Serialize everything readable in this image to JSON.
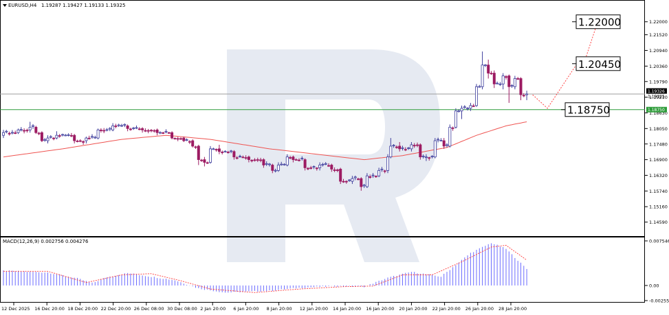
{
  "header": {
    "symbol_label": "EURUSD,H4",
    "ohlc_label": "1.19287 1.19427 1.19133 1.19325"
  },
  "macd_header": {
    "label": "MACD(12,26,9) 0.002756 0.004276"
  },
  "colors": {
    "bull_candle": "#3d3d9c",
    "bear_candle": "#9c1b62",
    "ma_line": "#ef5350",
    "macd_hist": "#6b6bff",
    "signal_line": "#ff3b3b",
    "support_line": "#2e9c3a",
    "price_line": "#9e9e9e",
    "forecast": "#ff4040",
    "watermark": "#e6eaf2"
  },
  "chart_data": [
    {
      "type": "candlestick",
      "symbol": "EURUSD",
      "timeframe": "H4",
      "x_ticks": [
        "12 Dec 2025",
        "16 Dec 20:00",
        "18 Dec 20:00",
        "22 Dec 20:00",
        "26 Dec 08:00",
        "30 Dec 08:00",
        "2 Jan 20:00",
        "6 Jan 20:00",
        "8 Jan 20:00",
        "12 Jan 20:00",
        "14 Jan 20:00",
        "16 Jan 20:00",
        "20 Jan 20:00",
        "22 Jan 20:00",
        "26 Jan 20:00",
        "28 Jan 20:00"
      ],
      "y_ticks": [
        "1.22000",
        "1.21520",
        "1.20940",
        "1.20360",
        "1.19790",
        "1.19210",
        "1.18630",
        "1.18050",
        "1.17480",
        "1.16900",
        "1.16320",
        "1.15740",
        "1.15160",
        "1.14590"
      ],
      "ylim": [
        1.1425,
        1.2245
      ],
      "price_label": "1.19325",
      "line_labels": [
        "1.19326",
        "1.18750"
      ],
      "levels": {
        "current": 1.19326,
        "support": 1.1875
      },
      "anchors": [
        {
          "x": 0,
          "open": 1.178,
          "close": 1.179,
          "high": 1.18,
          "low": 1.177
        },
        {
          "x": 5,
          "open": 1.179,
          "close": 1.18,
          "high": 1.1805,
          "low": 1.1785
        },
        {
          "x": 9,
          "open": 1.18,
          "close": 1.181,
          "high": 1.183,
          "low": 1.179
        },
        {
          "x": 11,
          "open": 1.181,
          "close": 1.179,
          "high": 1.1815,
          "low": 1.1785
        },
        {
          "x": 13,
          "open": 1.179,
          "close": 1.176,
          "high": 1.1795,
          "low": 1.1755
        },
        {
          "x": 15,
          "open": 1.176,
          "close": 1.177,
          "high": 1.178,
          "low": 1.175
        },
        {
          "x": 18,
          "open": 1.177,
          "close": 1.178,
          "high": 1.1795,
          "low": 1.1765
        },
        {
          "x": 24,
          "open": 1.178,
          "close": 1.176,
          "high": 1.1785,
          "low": 1.175
        },
        {
          "x": 28,
          "open": 1.176,
          "close": 1.177,
          "high": 1.1775,
          "low": 1.175
        },
        {
          "x": 32,
          "open": 1.177,
          "close": 1.18,
          "high": 1.1805,
          "low": 1.1765
        },
        {
          "x": 37,
          "open": 1.18,
          "close": 1.1815,
          "high": 1.1825,
          "low": 1.1795
        },
        {
          "x": 42,
          "open": 1.1815,
          "close": 1.1805,
          "high": 1.182,
          "low": 1.1795
        },
        {
          "x": 47,
          "open": 1.1805,
          "close": 1.18,
          "high": 1.181,
          "low": 1.179
        },
        {
          "x": 52,
          "open": 1.18,
          "close": 1.179,
          "high": 1.1805,
          "low": 1.178
        },
        {
          "x": 57,
          "open": 1.179,
          "close": 1.177,
          "high": 1.1795,
          "low": 1.1765
        },
        {
          "x": 61,
          "open": 1.177,
          "close": 1.176,
          "high": 1.1775,
          "low": 1.1755
        },
        {
          "x": 64,
          "open": 1.176,
          "close": 1.174,
          "high": 1.1765,
          "low": 1.1735
        },
        {
          "x": 66,
          "open": 1.174,
          "close": 1.169,
          "high": 1.1745,
          "low": 1.167
        },
        {
          "x": 68,
          "open": 1.169,
          "close": 1.168,
          "high": 1.17,
          "low": 1.1665
        },
        {
          "x": 70,
          "open": 1.168,
          "close": 1.173,
          "high": 1.174,
          "low": 1.1675
        },
        {
          "x": 73,
          "open": 1.173,
          "close": 1.172,
          "high": 1.1745,
          "low": 1.171
        },
        {
          "x": 78,
          "open": 1.172,
          "close": 1.17,
          "high": 1.1725,
          "low": 1.169
        },
        {
          "x": 83,
          "open": 1.17,
          "close": 1.169,
          "high": 1.1705,
          "low": 1.168
        },
        {
          "x": 88,
          "open": 1.169,
          "close": 1.167,
          "high": 1.1695,
          "low": 1.166
        },
        {
          "x": 91,
          "open": 1.167,
          "close": 1.165,
          "high": 1.1675,
          "low": 1.164
        },
        {
          "x": 93,
          "open": 1.165,
          "close": 1.167,
          "high": 1.168,
          "low": 1.1645
        },
        {
          "x": 96,
          "open": 1.167,
          "close": 1.17,
          "high": 1.171,
          "low": 1.1665
        },
        {
          "x": 98,
          "open": 1.17,
          "close": 1.169,
          "high": 1.1705,
          "low": 1.168
        },
        {
          "x": 102,
          "open": 1.169,
          "close": 1.166,
          "high": 1.1695,
          "low": 1.165
        },
        {
          "x": 107,
          "open": 1.166,
          "close": 1.167,
          "high": 1.168,
          "low": 1.165
        },
        {
          "x": 111,
          "open": 1.167,
          "close": 1.1655,
          "high": 1.1675,
          "low": 1.1645
        },
        {
          "x": 114,
          "open": 1.1655,
          "close": 1.161,
          "high": 1.166,
          "low": 1.16
        },
        {
          "x": 118,
          "open": 1.161,
          "close": 1.162,
          "high": 1.163,
          "low": 1.16
        },
        {
          "x": 121,
          "open": 1.162,
          "close": 1.159,
          "high": 1.1625,
          "low": 1.1575
        },
        {
          "x": 123,
          "open": 1.159,
          "close": 1.163,
          "high": 1.164,
          "low": 1.1585
        },
        {
          "x": 127,
          "open": 1.163,
          "close": 1.165,
          "high": 1.166,
          "low": 1.1625
        },
        {
          "x": 130,
          "open": 1.165,
          "close": 1.17,
          "high": 1.171,
          "low": 1.164
        },
        {
          "x": 131,
          "open": 1.17,
          "close": 1.174,
          "high": 1.177,
          "low": 1.1695
        },
        {
          "x": 134,
          "open": 1.174,
          "close": 1.173,
          "high": 1.1755,
          "low": 1.172
        },
        {
          "x": 138,
          "open": 1.173,
          "close": 1.1745,
          "high": 1.1755,
          "low": 1.172
        },
        {
          "x": 141,
          "open": 1.1745,
          "close": 1.17,
          "high": 1.175,
          "low": 1.169
        },
        {
          "x": 143,
          "open": 1.17,
          "close": 1.17,
          "high": 1.171,
          "low": 1.1685
        },
        {
          "x": 146,
          "open": 1.17,
          "close": 1.176,
          "high": 1.177,
          "low": 1.1695
        },
        {
          "x": 149,
          "open": 1.176,
          "close": 1.174,
          "high": 1.177,
          "low": 1.173
        },
        {
          "x": 151,
          "open": 1.174,
          "close": 1.181,
          "high": 1.182,
          "low": 1.1735
        },
        {
          "x": 153,
          "open": 1.181,
          "close": 1.187,
          "high": 1.188,
          "low": 1.1805
        },
        {
          "x": 155,
          "open": 1.187,
          "close": 1.188,
          "high": 1.189,
          "low": 1.184
        },
        {
          "x": 158,
          "open": 1.188,
          "close": 1.189,
          "high": 1.19,
          "low": 1.187
        },
        {
          "x": 160,
          "open": 1.189,
          "close": 1.196,
          "high": 1.197,
          "low": 1.1885
        },
        {
          "x": 162,
          "open": 1.196,
          "close": 1.204,
          "high": 1.209,
          "low": 1.195
        },
        {
          "x": 164,
          "open": 1.204,
          "close": 1.201,
          "high": 1.206,
          "low": 1.199
        },
        {
          "x": 166,
          "open": 1.201,
          "close": 1.197,
          "high": 1.202,
          "low": 1.1955
        },
        {
          "x": 169,
          "open": 1.197,
          "close": 1.2,
          "high": 1.201,
          "low": 1.195
        },
        {
          "x": 171,
          "open": 1.2,
          "close": 1.196,
          "high": 1.2005,
          "low": 1.19
        },
        {
          "x": 173,
          "open": 1.196,
          "close": 1.199,
          "high": 1.2,
          "low": 1.195
        },
        {
          "x": 175,
          "open": 1.199,
          "close": 1.193,
          "high": 1.1995,
          "low": 1.191
        },
        {
          "x": 177,
          "open": 1.193,
          "close": 1.1933,
          "high": 1.1945,
          "low": 1.191
        }
      ],
      "ma_line": [
        [
          0,
          1.17
        ],
        [
          20,
          1.173
        ],
        [
          40,
          1.1765
        ],
        [
          55,
          1.178
        ],
        [
          70,
          1.1765
        ],
        [
          90,
          1.173
        ],
        [
          110,
          1.1705
        ],
        [
          122,
          1.169
        ],
        [
          135,
          1.1705
        ],
        [
          150,
          1.1735
        ],
        [
          160,
          1.178
        ],
        [
          170,
          1.1815
        ],
        [
          177,
          1.183
        ]
      ],
      "forecast_path": [
        [
          179,
          1.193
        ],
        [
          184,
          1.188
        ],
        [
          194,
          1.2045
        ],
        [
          196,
          1.2035
        ],
        [
          201,
          1.22
        ]
      ],
      "annotations": [
        {
          "label": "1.22000",
          "price": 1.22
        },
        {
          "label": "1.20450",
          "price": 1.2045
        },
        {
          "label": "1.18750",
          "price": 1.1875
        }
      ]
    },
    {
      "type": "macd",
      "params": "MACD(12,26,9)",
      "y_ticks": [
        "0.007546",
        "0.00",
        "-0.002555"
      ],
      "ylim": [
        -0.002555,
        0.007546
      ],
      "hist_anchors": [
        [
          0,
          0.0025
        ],
        [
          15,
          0.0022
        ],
        [
          25,
          0.0012
        ],
        [
          30,
          0.0004
        ],
        [
          35,
          0.0014
        ],
        [
          42,
          0.0021
        ],
        [
          50,
          0.0015
        ],
        [
          58,
          0.0009
        ],
        [
          66,
          -0.0005
        ],
        [
          75,
          -0.0012
        ],
        [
          90,
          -0.0009
        ],
        [
          100,
          -0.0004
        ],
        [
          112,
          -0.0001
        ],
        [
          122,
          -0.0002
        ],
        [
          130,
          0.0013
        ],
        [
          138,
          0.0023
        ],
        [
          148,
          0.0015
        ],
        [
          158,
          0.0055
        ],
        [
          165,
          0.0072
        ],
        [
          170,
          0.0062
        ],
        [
          177,
          0.0028
        ]
      ],
      "signal_anchors": [
        [
          0,
          0.0024
        ],
        [
          15,
          0.0024
        ],
        [
          28,
          0.0005
        ],
        [
          40,
          0.0018
        ],
        [
          50,
          0.002
        ],
        [
          60,
          0.0008
        ],
        [
          70,
          -0.0006
        ],
        [
          85,
          -0.0012
        ],
        [
          100,
          -0.0006
        ],
        [
          115,
          -0.0002
        ],
        [
          125,
          -0.0001
        ],
        [
          135,
          0.0018
        ],
        [
          145,
          0.0018
        ],
        [
          155,
          0.004
        ],
        [
          165,
          0.0065
        ],
        [
          170,
          0.0068
        ],
        [
          177,
          0.0043
        ]
      ]
    }
  ]
}
